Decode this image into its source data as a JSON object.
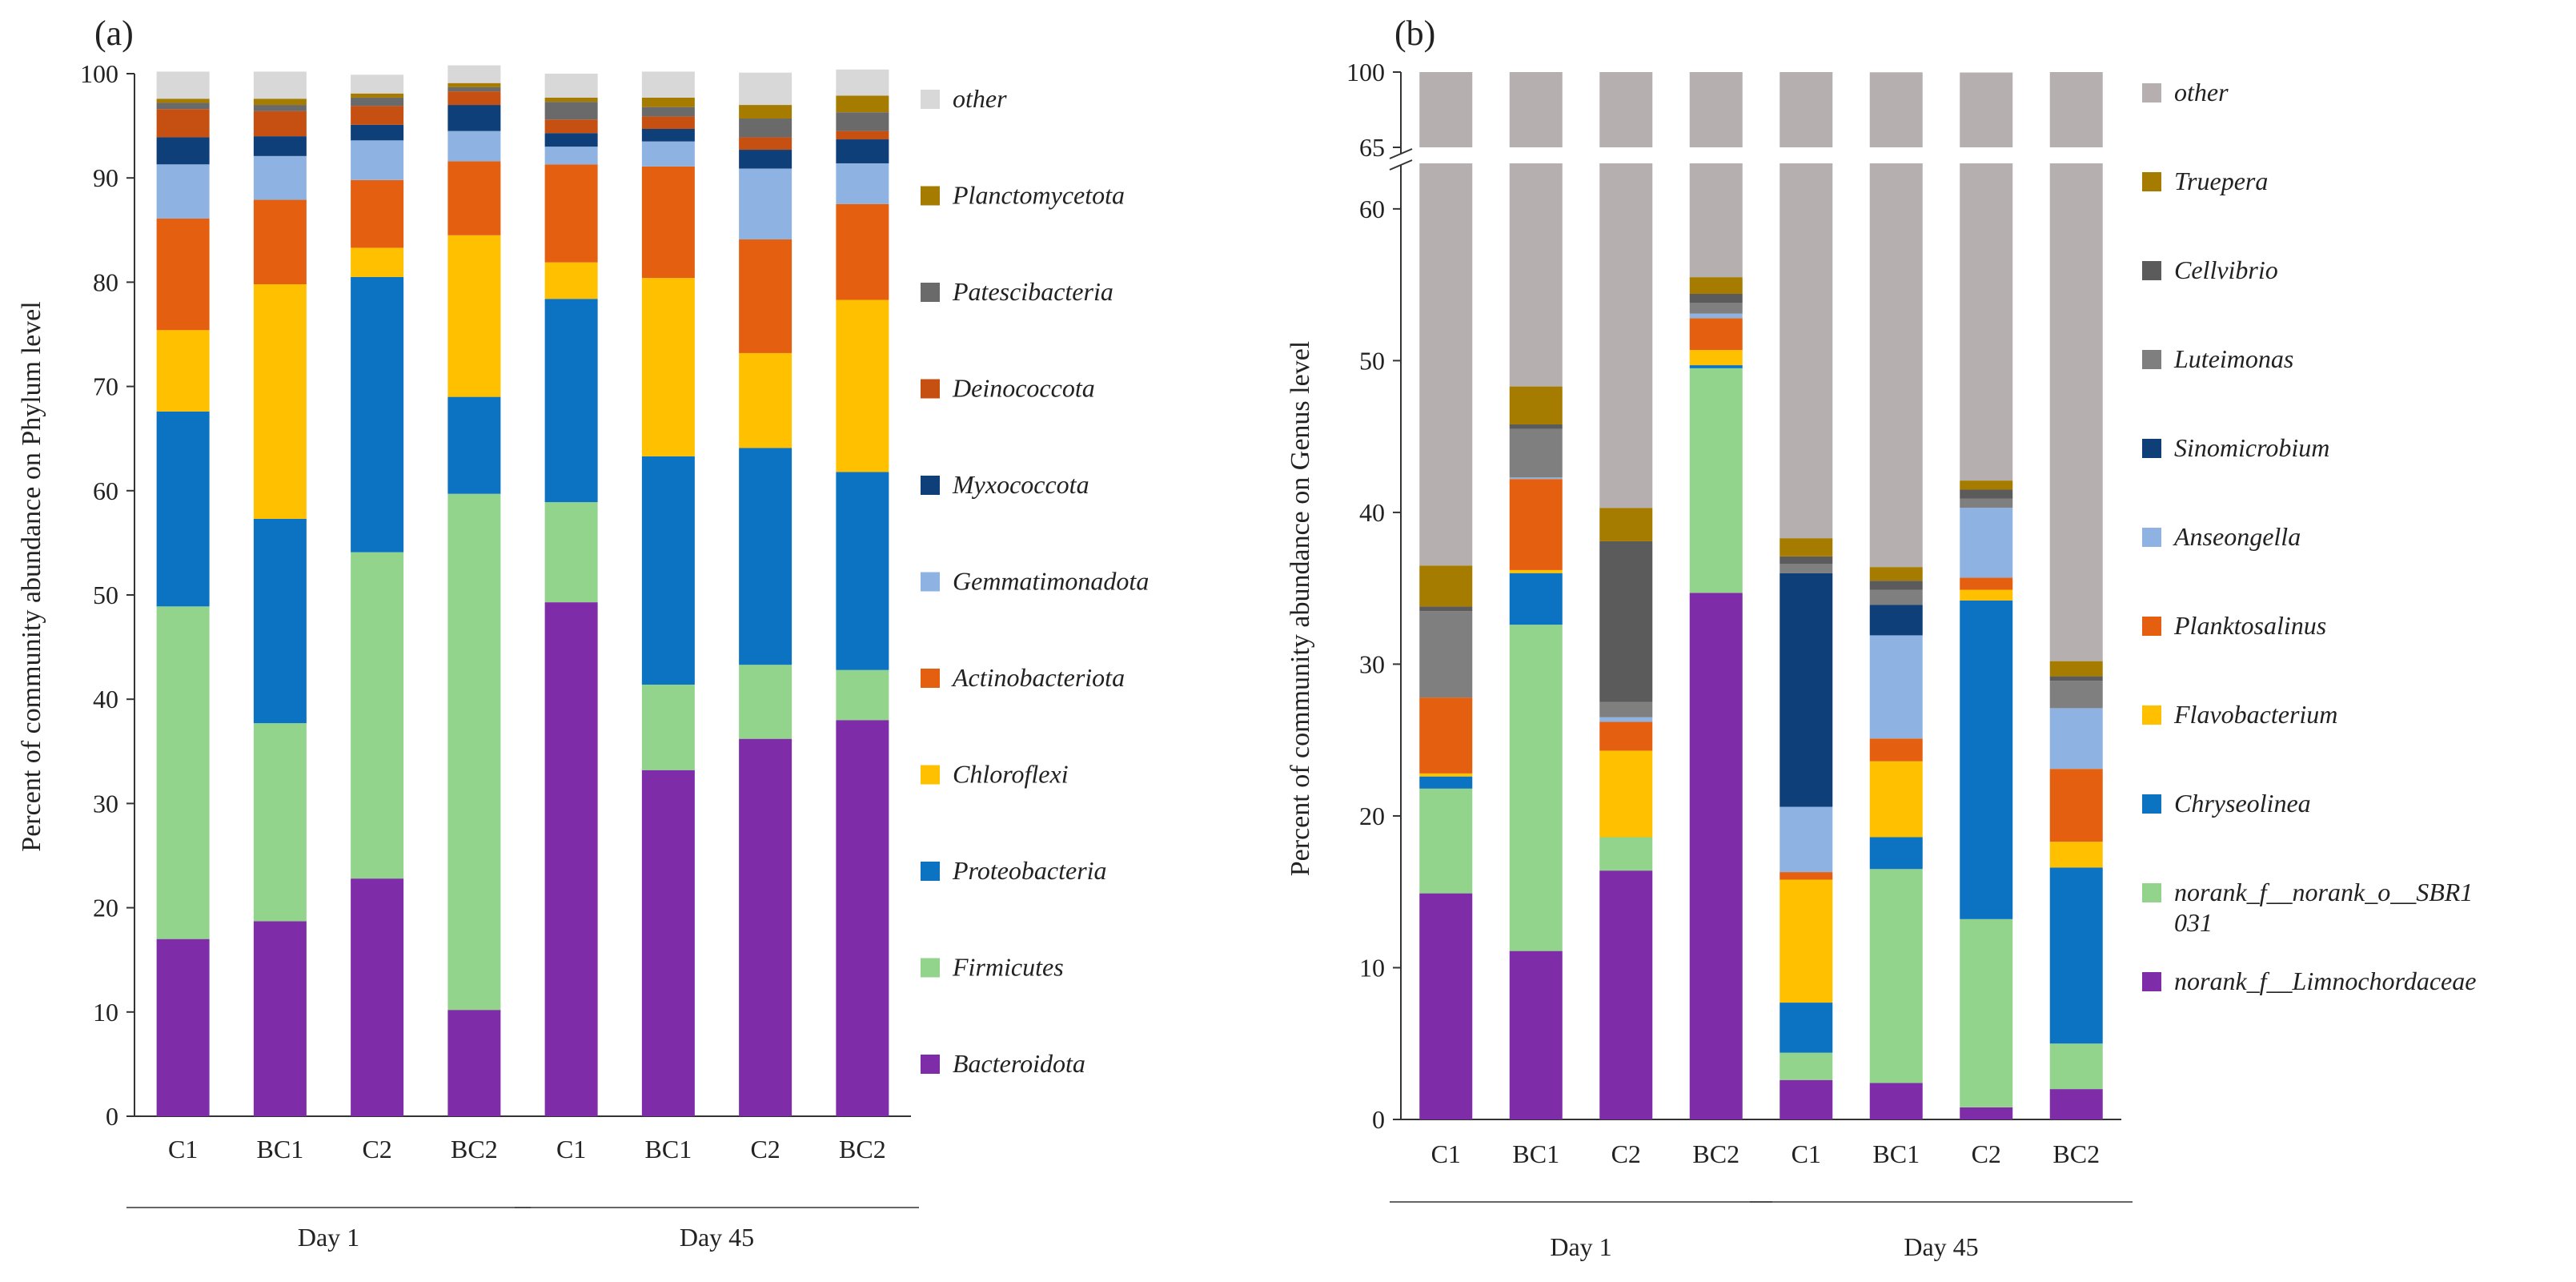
{
  "panels": {
    "a_label": "(a)",
    "b_label": "(b)"
  },
  "colors": {
    "Bacteroidota": "#7f2ca8",
    "Firmicutes": "#92d48c",
    "Proteobacteria": "#0b73c1",
    "Chloroflexi": "#ffc000",
    "Actinobacteriota": "#e46010",
    "Gemmatimonadota": "#8eb3e3",
    "Myxococcota": "#0e3f79",
    "Deinococcota": "#c64f12",
    "Patescibacteria": "#6a6a6a",
    "Planctomycetota": "#a67c00",
    "other_a": "#d8d8d8",
    "norank_f__Limnochordaceae": "#7f2ca8",
    "norank_f__norank_o__SBR1031": "#92d48c",
    "Chryseolinea": "#0b73c1",
    "Flavobacterium": "#ffc000",
    "Planktosalinus": "#e46010",
    "Anseongella": "#8eb3e3",
    "Sinomicrobium": "#0e3f79",
    "Luteimonas": "#7f7f7f",
    "Cellvibrio": "#5b5b5b",
    "Truepera": "#a67c00",
    "other_b": "#b5afaf"
  },
  "chart_data": [
    {
      "type": "bar",
      "stacked": true,
      "panel": "(a)",
      "ylabel": "Percent of community abundance on Phylum level",
      "ylim": [
        0,
        100
      ],
      "yticks": [
        0,
        10,
        20,
        30,
        40,
        50,
        60,
        70,
        80,
        90,
        100
      ],
      "categories": [
        "C1",
        "BC1",
        "C2",
        "BC2",
        "C1",
        "BC1",
        "C2",
        "BC2"
      ],
      "groups": [
        {
          "label": "Day 1",
          "span": [
            0,
            3
          ]
        },
        {
          "label": "Day 45",
          "span": [
            4,
            7
          ]
        }
      ],
      "legend_position": "right",
      "series": [
        {
          "name": "Bacteroidota",
          "values": [
            17,
            18.7,
            22.8,
            10.2,
            49.3,
            33.2,
            36.2,
            38
          ]
        },
        {
          "name": "Firmicutes",
          "values": [
            31.9,
            19,
            31.3,
            49.5,
            9.6,
            8.2,
            7.1,
            4.8
          ]
        },
        {
          "name": "Proteobacteria",
          "values": [
            18.7,
            19.6,
            26.4,
            9.3,
            19.5,
            21.9,
            20.8,
            19
          ]
        },
        {
          "name": "Chloroflexi",
          "values": [
            7.8,
            22.5,
            2.8,
            15.5,
            3.5,
            17.1,
            9.1,
            16.5
          ]
        },
        {
          "name": "Actinobacteriota",
          "values": [
            10.7,
            8.1,
            6.5,
            7.1,
            9.4,
            10.7,
            10.9,
            9.2
          ]
        },
        {
          "name": "Gemmatimonadota",
          "values": [
            5.2,
            4.2,
            3.8,
            2.9,
            1.7,
            2.4,
            6.8,
            3.9
          ]
        },
        {
          "name": "Myxococcota",
          "values": [
            2.6,
            1.9,
            1.5,
            2.5,
            1.3,
            1.2,
            1.8,
            2.3
          ]
        },
        {
          "name": "Deinococcota",
          "values": [
            2.7,
            2.4,
            1.8,
            1.3,
            1.3,
            1.2,
            1.2,
            0.8
          ]
        },
        {
          "name": "Patescibacteria",
          "values": [
            0.6,
            0.6,
            0.8,
            0.4,
            1.7,
            0.9,
            1.8,
            1.8
          ]
        },
        {
          "name": "Planctomycetota",
          "values": [
            0.4,
            0.6,
            0.4,
            0.4,
            0.4,
            0.9,
            1.3,
            1.6
          ]
        },
        {
          "name": "other",
          "values": [
            2.6,
            2.6,
            1.8,
            1.7,
            2.3,
            2.5,
            3.1,
            2.5
          ]
        }
      ]
    },
    {
      "type": "bar",
      "stacked": true,
      "panel": "(b)",
      "ylabel": "Percent of community abundance on Genus level",
      "ylim": [
        0,
        100
      ],
      "axis_break": [
        63,
        65
      ],
      "yticks": [
        0,
        10,
        20,
        30,
        40,
        50,
        60,
        65,
        100
      ],
      "categories": [
        "C1",
        "BC1",
        "C2",
        "BC2",
        "C1",
        "BC1",
        "C2",
        "BC2"
      ],
      "groups": [
        {
          "label": "Day 1",
          "span": [
            0,
            3
          ]
        },
        {
          "label": "Day 45",
          "span": [
            4,
            7
          ]
        }
      ],
      "legend_position": "right",
      "series": [
        {
          "name": "norank_f__Limnochordaceae",
          "legend": "norank_f__Limnochordaceae",
          "values": [
            14.9,
            11.1,
            16.4,
            34.7,
            2.6,
            2.4,
            0.8,
            2
          ]
        },
        {
          "name": "norank_f__norank_o__SBR1031",
          "legend": "norank_f__norank_o__SBR1 031",
          "values": [
            6.9,
            21.5,
            2.2,
            14.8,
            1.8,
            14.1,
            12.4,
            3
          ]
        },
        {
          "name": "Chryseolinea",
          "legend": "Chryseolinea",
          "values": [
            0.8,
            3.4,
            0,
            0.2,
            3.3,
            2.1,
            21,
            11.6
          ]
        },
        {
          "name": "Flavobacterium",
          "legend": "Flavobacterium",
          "values": [
            0.2,
            0.2,
            5.7,
            1,
            8.1,
            5,
            0.7,
            1.7
          ]
        },
        {
          "name": "Planktosalinus",
          "legend": "Planktosalinus",
          "values": [
            5,
            6,
            1.9,
            2.1,
            0.5,
            1.5,
            0.8,
            4.8
          ]
        },
        {
          "name": "Anseongella",
          "legend": "Anseongella",
          "values": [
            0,
            0.1,
            0.3,
            0.3,
            4.3,
            6.8,
            4.6,
            4
          ]
        },
        {
          "name": "Sinomicrobium",
          "legend": "Sinomicrobium",
          "values": [
            0,
            0,
            0,
            0,
            15.4,
            2,
            0,
            0
          ]
        },
        {
          "name": "Luteimonas",
          "legend": "Luteimonas",
          "values": [
            5.7,
            3.2,
            1,
            0.7,
            0.6,
            1,
            0.6,
            1.8
          ]
        },
        {
          "name": "Cellvibrio",
          "legend": "Cellvibrio",
          "values": [
            0.3,
            0.3,
            10.6,
            0.6,
            0.5,
            0.6,
            0.6,
            0.3
          ]
        },
        {
          "name": "Truepera",
          "legend": "Truepera",
          "values": [
            2.7,
            2.5,
            2.2,
            1.1,
            1.2,
            0.9,
            0.6,
            1
          ]
        },
        {
          "name": "other",
          "legend": "other",
          "values": [
            63.5,
            51.7,
            59.7,
            44.5,
            61.7,
            63.5,
            57.7,
            69.8
          ]
        }
      ]
    }
  ]
}
